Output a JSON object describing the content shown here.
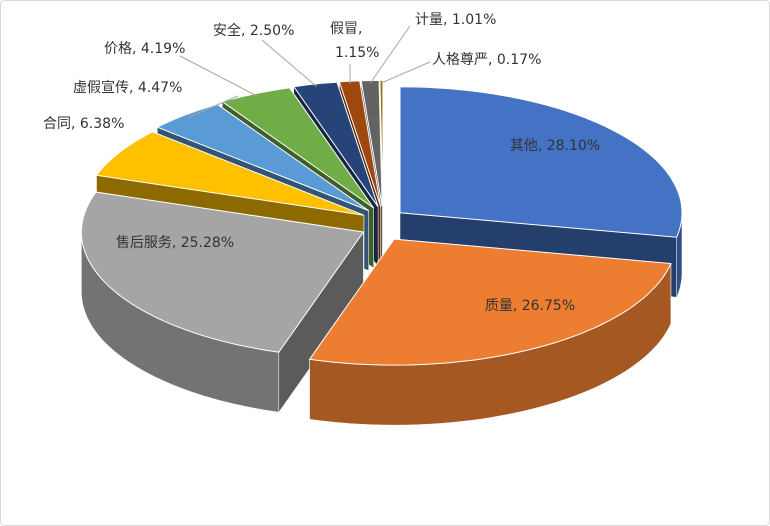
{
  "chart_data": {
    "type": "pie3d",
    "categories": [
      "其他",
      "质量",
      "售后服务",
      "合同",
      "虚假宣传",
      "价格",
      "安全",
      "假冒",
      "计量",
      "人格尊严"
    ],
    "values": [
      28.1,
      26.75,
      25.28,
      6.38,
      4.47,
      4.19,
      2.5,
      1.15,
      1.01,
      0.17
    ],
    "value_labels": [
      "其他, 28.10%",
      "质量, 26.75%",
      "售后服务, 25.28%",
      "合同, 6.38%",
      "虚假宣传, 4.47%",
      "价格, 4.19%",
      "安全, 2.50%",
      "假冒, 1.15%",
      "计量, 1.01%",
      "人格尊严, 0.17%"
    ],
    "colors": [
      "#4472c4",
      "#ed7d31",
      "#a5a5a5",
      "#ffc000",
      "#5b9bd5",
      "#70ad47",
      "#264478",
      "#9e480e",
      "#636363",
      "#997300"
    ]
  }
}
